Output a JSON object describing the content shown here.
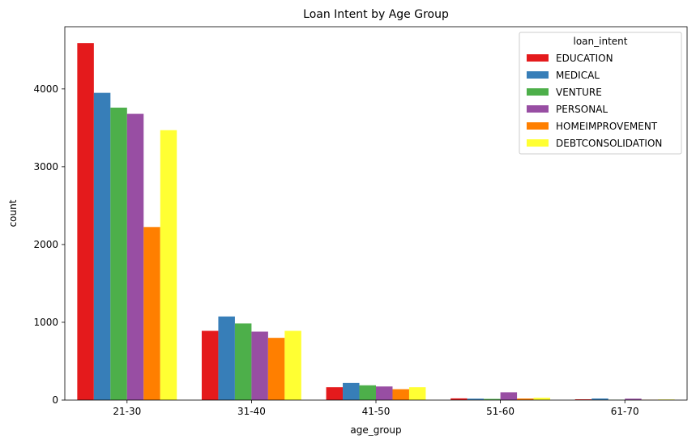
{
  "chart_data": {
    "type": "bar",
    "title": "Loan Intent by Age Group",
    "xlabel": "age_group",
    "ylabel": "count",
    "categories": [
      "21-30",
      "31-40",
      "41-50",
      "51-60",
      "61-70"
    ],
    "ylim": [
      0,
      4800
    ],
    "yticks": [
      0,
      1000,
      2000,
      3000,
      4000
    ],
    "grid": false,
    "legend": {
      "title": "loan_intent",
      "placement": "top-right"
    },
    "series": [
      {
        "name": "EDUCATION",
        "color": "#e41a1c",
        "values": [
          4590,
          890,
          165,
          22,
          10
        ]
      },
      {
        "name": "MEDICAL",
        "color": "#377eb8",
        "values": [
          3950,
          1075,
          220,
          18,
          20
        ]
      },
      {
        "name": "VENTURE",
        "color": "#4daf4a",
        "values": [
          3760,
          985,
          190,
          15,
          3
        ]
      },
      {
        "name": "PERSONAL",
        "color": "#984ea3",
        "values": [
          3680,
          880,
          175,
          100,
          18
        ]
      },
      {
        "name": "HOMEIMPROVEMENT",
        "color": "#ff7f00",
        "values": [
          2225,
          800,
          140,
          20,
          4
        ]
      },
      {
        "name": "DEBTCONSOLIDATION",
        "color": "#ffff33",
        "values": [
          3470,
          890,
          165,
          30,
          8
        ]
      }
    ]
  }
}
